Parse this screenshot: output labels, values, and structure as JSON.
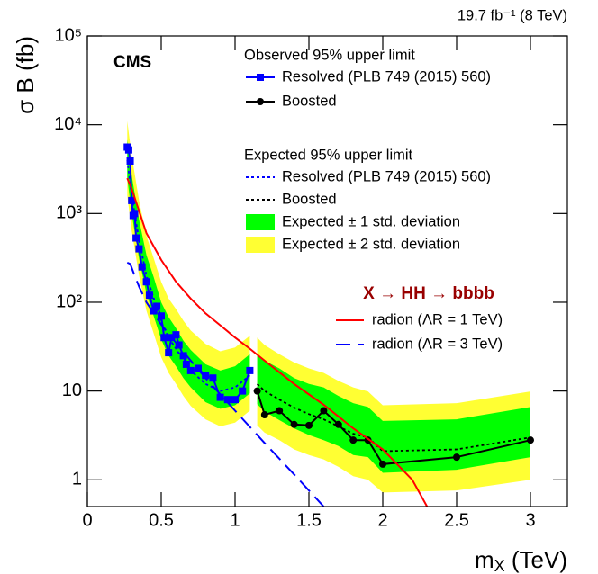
{
  "chart_data": {
    "type": "line",
    "lumi_label": "19.7 fb⁻¹ (8 TeV)",
    "experiment": "CMS",
    "y_label": "σ B (fb)",
    "x_label": {
      "main": "m",
      "sub": "X",
      "unit": " (TeV)"
    },
    "xlim": [
      0,
      3.25
    ],
    "xticks": [
      0,
      0.5,
      1,
      1.5,
      2,
      2.5,
      3
    ],
    "ylim": [
      0.5,
      100000
    ],
    "log_y": true,
    "yticks": [
      1,
      10,
      {
        "value": 100,
        "label": "10²"
      },
      {
        "value": 1000,
        "label": "10³"
      },
      {
        "value": 10000,
        "label": "10⁴"
      },
      {
        "value": 100000,
        "label": "10⁵"
      }
    ],
    "legend_headings": [
      "Observed 95% upper limit",
      "Expected 95% upper limit"
    ],
    "signal_title": "X → HH → bbbb",
    "bands": [
      {
        "name": "Expected ± 2 std. deviation",
        "color": "#ffff33",
        "pieces": [
          {
            "x": [
              0.27,
              0.3,
              0.35,
              0.4,
              0.45,
              0.5,
              0.55,
              0.6,
              0.65,
              0.7,
              0.8,
              0.9,
              1.0,
              1.1
            ],
            "lower": [
              1600,
              640,
              200,
              80,
              44,
              24,
              16,
              12,
              8.8,
              6.8,
              4.8,
              4.0,
              4.4,
              6.0
            ],
            "upper": [
              11000,
              4500,
              1400,
              560,
              310,
              170,
              110,
              84,
              62,
              48,
              34,
              28,
              31,
              42
            ]
          },
          {
            "x": [
              1.15,
              1.2,
              1.3,
              1.4,
              1.5,
              1.6,
              1.7,
              1.8,
              1.9,
              2.0,
              2.5,
              3.0
            ],
            "lower": [
              4.1,
              3.4,
              2.8,
              2.2,
              1.9,
              1.7,
              1.4,
              1.1,
              1.0,
              0.72,
              0.76,
              1.0
            ],
            "upper": [
              40,
              33,
              26,
              21,
              18,
              16,
              13,
              11,
              9.9,
              6.9,
              7.3,
              9.9
            ]
          }
        ]
      },
      {
        "name": "Expected ± 1 std. deviation",
        "color": "#00ff00",
        "pieces": [
          {
            "x": [
              0.27,
              0.3,
              0.35,
              0.4,
              0.45,
              0.5,
              0.55,
              0.6,
              0.65,
              0.7,
              0.8,
              0.9,
              1.0,
              1.1
            ],
            "lower": [
              2500,
              1000,
              310,
              125,
              69,
              38,
              25,
              19,
              14,
              11,
              7.5,
              6.3,
              6.9,
              9.4
            ],
            "upper": [
              6800,
              2700,
              850,
              340,
              190,
              100,
              68,
              51,
              37,
              29,
              20,
              17,
              19,
              26
            ]
          },
          {
            "x": [
              1.15,
              1.2,
              1.3,
              1.4,
              1.5,
              1.6,
              1.7,
              1.8,
              1.9,
              2.0,
              2.5,
              3.0
            ],
            "lower": [
              7.1,
              5.9,
              4.7,
              3.8,
              3.2,
              2.8,
              2.4,
              1.9,
              1.8,
              1.2,
              1.3,
              1.8
            ],
            "upper": [
              26,
              22,
              18,
              14,
              12,
              11,
              8.8,
              7.3,
              6.6,
              4.6,
              4.8,
              6.6
            ]
          }
        ]
      }
    ],
    "series": [
      {
        "name": "Resolved (PLB 749 (2015) 560)",
        "group": "expected",
        "color": "#0000ff",
        "style": "dotted",
        "x": [
          0.27,
          0.3,
          0.35,
          0.4,
          0.45,
          0.5,
          0.55,
          0.6,
          0.65,
          0.7,
          0.8,
          0.9,
          1.0,
          1.1
        ],
        "values": [
          4000,
          1600,
          500,
          200,
          110,
          60,
          40,
          30,
          22,
          17,
          12,
          10,
          11,
          15
        ]
      },
      {
        "name": "Boosted",
        "group": "expected",
        "color": "#000000",
        "style": "dotted",
        "x": [
          1.15,
          1.2,
          1.3,
          1.4,
          1.5,
          1.6,
          1.7,
          1.8,
          1.9,
          2.0,
          2.5,
          3.0
        ],
        "values": [
          12,
          10,
          8,
          6.5,
          5.5,
          4.8,
          4,
          3.3,
          3,
          2.1,
          2.2,
          3
        ]
      },
      {
        "name": "Resolved (PLB 749 (2015) 560)",
        "group": "observed",
        "color": "#0000ff",
        "style": "solid",
        "marker": "square",
        "x": [
          0.27,
          0.28,
          0.29,
          0.3,
          0.31,
          0.32,
          0.33,
          0.35,
          0.37,
          0.4,
          0.42,
          0.45,
          0.47,
          0.5,
          0.52,
          0.55,
          0.57,
          0.6,
          0.62,
          0.65,
          0.67,
          0.7,
          0.75,
          0.8,
          0.85,
          0.9,
          0.95,
          1.0,
          1.05,
          1.1
        ],
        "values": [
          5600,
          5200,
          3900,
          1400,
          950,
          1000,
          530,
          400,
          250,
          170,
          120,
          80,
          90,
          70,
          40,
          27,
          40,
          43,
          33,
          25,
          20,
          17,
          18,
          15,
          14,
          8.5,
          8,
          8,
          10,
          17
        ]
      },
      {
        "name": "Boosted",
        "group": "observed",
        "color": "#000000",
        "style": "solid",
        "marker": "circle",
        "x": [
          1.15,
          1.2,
          1.3,
          1.4,
          1.5,
          1.6,
          1.7,
          1.8,
          1.9,
          2.0,
          2.5,
          3.0
        ],
        "values": [
          10,
          5.4,
          6,
          4.2,
          4.1,
          6,
          4.2,
          2.8,
          2.8,
          1.5,
          1.8,
          2.8
        ]
      },
      {
        "name": "radion (ΛR = 1 TeV)",
        "group": "signal",
        "color": "#ff0000",
        "style": "solid",
        "x": [
          0.27,
          0.3,
          0.4,
          0.5,
          0.6,
          0.7,
          0.8,
          0.9,
          1.0,
          1.1,
          1.2,
          1.4,
          1.6,
          1.8,
          2.0,
          2.2,
          2.3
        ],
        "values": [
          2500,
          1900,
          600,
          300,
          170,
          110,
          75,
          55,
          40,
          30,
          22,
          12,
          7,
          3.8,
          2.2,
          1.0,
          0.5
        ]
      },
      {
        "name": "radion (ΛR = 3 TeV)",
        "group": "signal",
        "color": "#0000ff",
        "style": "dashed",
        "x": [
          0.27,
          0.29,
          0.32,
          0.35,
          0.4,
          0.5,
          0.6,
          0.7,
          0.8,
          1.0,
          1.2,
          1.4,
          1.6
        ],
        "values": [
          280,
          270,
          200,
          150,
          100,
          56,
          35,
          22,
          14,
          6,
          2.6,
          1.15,
          0.5
        ]
      }
    ]
  }
}
